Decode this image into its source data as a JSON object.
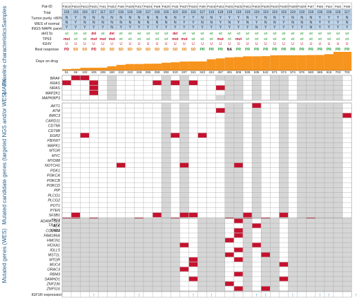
{
  "colors": {
    "mutated": "#c4122e",
    "not_covered": "#d6d6d6",
    "header_blue": "#bcd3ea",
    "bar_fill": "#f7941d",
    "section_label": "#1f5d8c",
    "green": "#2a9d3a",
    "orange": "#e07b00",
    "red": "#c4122e",
    "arrow_blue": "#2b8fd1",
    "grid": "#9a9a9a"
  },
  "sections": {
    "samples": "Samples",
    "baseline": "Baseline characteristics",
    "mapk": "MAPK",
    "targeted": "Mutated candidate genes (targeted NGS and/or WES)",
    "wes": "Mutated genes (WES)"
  },
  "header_rows": {
    "pat_id": "Pat-ID",
    "trial": "Trial",
    "purity": "Tumor purity >80%",
    "wes_normal": "WES of normal",
    "ingss": "INGS MAPK panel",
    "del17p": "del17p",
    "tp53": "TP53",
    "ighv": "IGHV",
    "best_response": "Best response",
    "days_on_drug": "Days on drug"
  },
  "patients": [
    "Pat18",
    "Pat16",
    "Pat13",
    "Pat21",
    "Pat1",
    "Pat22",
    "Pat6",
    "Pat25",
    "Pat17",
    "Pat24",
    "Pat8",
    "Pat20",
    "Pat3",
    "Pat27",
    "Pat23",
    "Pat9",
    "Pat15",
    "Pat11",
    "Pat31",
    "Pat32",
    "Pat12",
    "Pat34",
    "Pat26",
    "Pat10",
    "Pat30",
    "Pat28",
    "Pat29",
    "Pat7",
    "Pat5",
    "Pat4",
    "Pat2",
    "Pat6"
  ],
  "trial": [
    "116",
    "116",
    "116",
    "117",
    "117",
    "117",
    "116",
    "116",
    "116",
    "117",
    "116",
    "116",
    "119",
    "116",
    "116",
    "117",
    "119",
    "118",
    "119",
    "119",
    "119",
    "119",
    "119",
    "119",
    "119",
    "119",
    "119",
    "116",
    "116",
    "116",
    "116",
    "117"
  ],
  "purity": [
    "N",
    "Y",
    "N",
    "N",
    "N",
    "N",
    "N",
    "N",
    "N",
    "N",
    "N",
    "N",
    "N",
    "Y",
    "Y",
    "N",
    "N",
    "Y",
    "Y",
    "Y",
    "N",
    "Y",
    "N",
    "N",
    "Y",
    "N",
    "N",
    "N",
    "Y",
    "Y",
    "Y",
    "N"
  ],
  "wes_normal": [
    "N",
    "Y",
    "N",
    "N",
    "N",
    "N",
    "N",
    "N",
    "N",
    "N",
    "N",
    "N",
    "N",
    "Y",
    "Y",
    "N",
    "N",
    "Y",
    "N",
    "Y",
    "N",
    "Y",
    "N",
    "N",
    "Y",
    "N",
    "N",
    "N",
    "Y",
    "Y",
    "Y",
    "N"
  ],
  "ingss": [
    "Y",
    "Y",
    "Y",
    "Y",
    "Y",
    "N",
    "Y",
    "Y",
    "Y",
    "Y",
    "Y",
    "Y",
    "Y",
    "Y",
    "Y",
    "Y",
    "Y",
    "Y",
    "Y",
    "Y",
    "Y",
    "N",
    "Y",
    "Y",
    "Y",
    "Y",
    "Y",
    "N",
    "Y",
    "Y",
    "Y",
    "Y"
  ],
  "del17p": [
    "wt",
    "wt",
    "wt",
    "del",
    "wt",
    "del",
    "wt",
    "wt",
    "wt",
    "wt",
    "wt",
    "wt",
    "del",
    "wt",
    "wt",
    "wt",
    "wt",
    "wt",
    "wt",
    "wt",
    "wt",
    "wt",
    "wt",
    "wt",
    "wt",
    "wt",
    "wt",
    "wt",
    "wt",
    "wt",
    "wt",
    "wt"
  ],
  "tp53": [
    "mut",
    "wt",
    "wt",
    "mut",
    "mut",
    "mut",
    "wt",
    "wt",
    "wt",
    "wt",
    "wt",
    "wt",
    "mut",
    "mut",
    "wt",
    "wt",
    "wt",
    "mut",
    "wt",
    "mut",
    "wt",
    "wt",
    "wt",
    "wt",
    "wt",
    "wt",
    "wt",
    "wt",
    "wt",
    "wt",
    "wt",
    "wt"
  ],
  "ighv": [
    "U",
    "U",
    "U",
    "U",
    "U",
    "U",
    "U",
    "U",
    "U",
    "U",
    "U",
    "U",
    "U",
    "U",
    "U",
    "U",
    "U",
    "U",
    "U",
    "U",
    "U",
    "U",
    "U",
    "U",
    "U",
    "U",
    "U",
    "U",
    "U",
    "U",
    "U",
    "U"
  ],
  "best_response": [
    "PD",
    "SD",
    "SD",
    "PD",
    "SD",
    "SD",
    "SD",
    "SD",
    "SD",
    "SD",
    "SD",
    "SD",
    "SD",
    "SD",
    "SD",
    "PR",
    "PR",
    "PR",
    "NA",
    "PR",
    "PR",
    "PR",
    "PR",
    "PR",
    "PR",
    "PR",
    "PR",
    "PR",
    "PR",
    "PR",
    "PR",
    "PR"
  ],
  "days_on_drug": [
    51,
    66,
    102,
    105,
    108,
    160,
    213,
    243,
    246,
    255,
    259,
    293,
    310,
    337,
    341,
    343,
    424,
    457,
    491,
    506,
    535,
    535,
    542,
    571,
    574,
    574,
    576,
    583,
    585,
    616,
    703,
    703
  ],
  "mapk_genes": [
    "BRAF",
    "KRAS",
    "NRAS",
    "MAP2K1",
    "MAPK8IP3"
  ],
  "targeted_genes": [
    "AKT1",
    "ATM",
    "BIRC3",
    "CARD11",
    "CD79A",
    "CD79B",
    "EGR2",
    "FBXW7",
    "MAPK1",
    "MTOR",
    "MYC",
    "MYD88",
    "NOTCH1",
    "PDK1",
    "PI3KCA",
    "PI3KCB",
    "PI3KCD",
    "PIP",
    "PLCG1",
    "PLCG2",
    "POT1",
    "PTEN",
    "SF3B1",
    "TP53",
    "TRAF2",
    "XPO1"
  ],
  "wes_genes": [
    "ADAMTSL1",
    "ALK",
    "COL4A4",
    "FAM186A",
    "HMCN1",
    "HOXA1",
    "IGLL5",
    "MST1L",
    "MTOR",
    "MUC4",
    "ORAC3",
    "RBM3",
    "SAMHD1",
    "ZNF236",
    "ZNF516"
  ],
  "igf1r_label": "IGF1R expression",
  "igf1r_up": [
    3,
    8,
    14,
    16,
    21,
    22,
    25,
    28,
    29,
    32
  ],
  "mapk_mut": [
    [
      0,
      1
    ],
    [
      0,
      2
    ],
    [
      1,
      0
    ],
    [
      1,
      3
    ],
    [
      1,
      10
    ],
    [
      1,
      12
    ],
    [
      1,
      14
    ],
    [
      2,
      3
    ],
    [
      2,
      17
    ],
    [
      3,
      3
    ]
  ],
  "mapk_nc": [
    [
      0,
      5
    ],
    [
      0,
      11
    ],
    [
      0,
      13
    ],
    [
      0,
      17
    ],
    [
      0,
      18
    ],
    [
      0,
      19
    ],
    [
      0,
      21
    ],
    [
      0,
      23
    ],
    [
      0,
      24
    ],
    [
      0,
      26
    ],
    [
      0,
      27
    ],
    [
      0,
      28
    ],
    [
      0,
      29
    ],
    [
      0,
      30
    ],
    [
      1,
      5
    ],
    [
      1,
      11
    ],
    [
      1,
      13
    ],
    [
      1,
      18
    ],
    [
      1,
      19
    ],
    [
      1,
      21
    ],
    [
      1,
      23
    ],
    [
      1,
      24
    ],
    [
      1,
      26
    ],
    [
      1,
      27
    ],
    [
      1,
      28
    ],
    [
      1,
      29
    ],
    [
      1,
      30
    ],
    [
      2,
      5
    ],
    [
      2,
      11
    ],
    [
      2,
      13
    ],
    [
      2,
      18
    ],
    [
      2,
      19
    ],
    [
      2,
      21
    ],
    [
      2,
      23
    ],
    [
      2,
      24
    ],
    [
      2,
      26
    ],
    [
      2,
      27
    ],
    [
      2,
      28
    ],
    [
      2,
      29
    ],
    [
      2,
      30
    ],
    [
      3,
      5
    ],
    [
      3,
      11
    ],
    [
      3,
      13
    ],
    [
      3,
      18
    ],
    [
      3,
      19
    ],
    [
      3,
      21
    ],
    [
      3,
      23
    ],
    [
      3,
      24
    ],
    [
      3,
      26
    ],
    [
      3,
      27
    ],
    [
      3,
      28
    ],
    [
      3,
      29
    ],
    [
      3,
      30
    ],
    [
      4,
      5
    ],
    [
      4,
      11
    ],
    [
      4,
      13
    ],
    [
      4,
      17
    ],
    [
      4,
      18
    ],
    [
      4,
      19
    ],
    [
      4,
      21
    ],
    [
      4,
      23
    ],
    [
      4,
      24
    ],
    [
      4,
      26
    ],
    [
      4,
      27
    ],
    [
      4,
      28
    ],
    [
      4,
      29
    ],
    [
      4,
      30
    ]
  ],
  "targeted_mut": [
    [
      0,
      21
    ],
    [
      1,
      17
    ],
    [
      2,
      31
    ],
    [
      6,
      2
    ],
    [
      6,
      12
    ],
    [
      6,
      15
    ],
    [
      12,
      6
    ],
    [
      12,
      13
    ],
    [
      12,
      19
    ],
    [
      22,
      1
    ],
    [
      22,
      10
    ],
    [
      22,
      13
    ],
    [
      22,
      14
    ],
    [
      22,
      20
    ],
    [
      22,
      24
    ],
    [
      23,
      0
    ],
    [
      23,
      1
    ],
    [
      23,
      3
    ],
    [
      23,
      8
    ],
    [
      23,
      12
    ],
    [
      23,
      18
    ],
    [
      23,
      20
    ],
    [
      23,
      22
    ],
    [
      23,
      27
    ],
    [
      24,
      25
    ],
    [
      25,
      31
    ]
  ],
  "targeted_nc_cols": [
    11,
    13,
    18,
    19,
    21,
    24,
    26,
    27,
    28,
    29,
    30
  ],
  "wes_nc_cols": [
    0,
    1,
    2,
    3,
    4,
    5,
    6,
    7,
    8,
    9,
    10,
    11,
    12,
    15,
    16,
    17,
    20,
    22,
    23,
    25,
    26,
    27,
    28,
    29,
    30,
    31
  ],
  "wes_mut": [
    [
      0,
      19
    ],
    [
      1,
      21
    ],
    [
      2,
      19
    ],
    [
      3,
      19
    ],
    [
      4,
      18
    ],
    [
      5,
      13
    ],
    [
      5,
      21
    ],
    [
      6,
      19
    ],
    [
      7,
      18
    ],
    [
      7,
      22
    ],
    [
      8,
      14
    ],
    [
      8,
      19
    ],
    [
      9,
      14
    ],
    [
      9,
      24
    ],
    [
      10,
      13
    ],
    [
      11,
      19
    ],
    [
      12,
      14
    ],
    [
      12,
      24
    ],
    [
      13,
      18
    ],
    [
      14,
      19
    ],
    [
      14,
      22
    ]
  ]
}
